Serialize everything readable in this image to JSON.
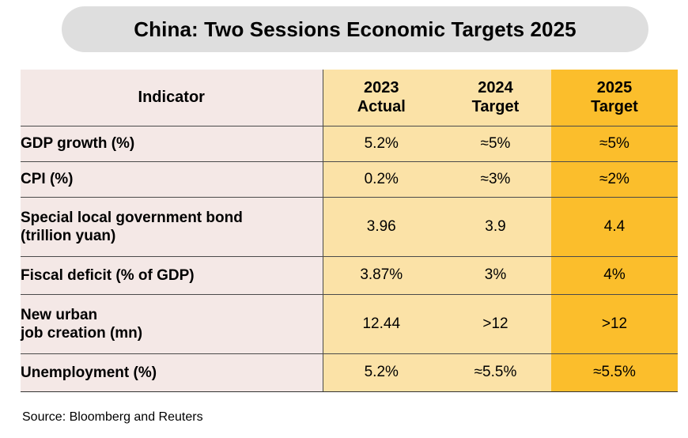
{
  "title": "China: Two Sessions Economic Targets 2025",
  "table": {
    "header": {
      "indicator": "Indicator",
      "col_2023": [
        "2023",
        "Actual"
      ],
      "col_2024": [
        "2024",
        "Target"
      ],
      "col_2025": [
        "2025",
        "Target"
      ]
    },
    "rows": [
      {
        "indicator": [
          "GDP growth (%)"
        ],
        "v2023": "5.2%",
        "v2024": "≈5%",
        "v2025": "≈5%"
      },
      {
        "indicator": [
          "CPI (%)"
        ],
        "v2023": "0.2%",
        "v2024": "≈3%",
        "v2025": "≈2%"
      },
      {
        "indicator": [
          "Special local government bond",
          "(trillion yuan)"
        ],
        "v2023": "3.96",
        "v2024": "3.9",
        "v2025": "4.4"
      },
      {
        "indicator": [
          "Fiscal deficit (% of GDP)"
        ],
        "v2023": "3.87%",
        "v2024": "3%",
        "v2025": "4%"
      },
      {
        "indicator": [
          "New urban",
          "job creation (mn)"
        ],
        "v2023": "12.44",
        "v2024": ">12",
        "v2025": ">12"
      },
      {
        "indicator": [
          "Unemployment (%)"
        ],
        "v2023": "5.2%",
        "v2024": "≈5.5%",
        "v2025": "≈5.5%"
      }
    ]
  },
  "source": "Source: Bloomberg and Reuters",
  "colors": {
    "title_bg": "#dedede",
    "indicator_col": "#f4e8e6",
    "light_yellow": "#fbe2a7",
    "highlight_yellow": "#fbbe2c"
  }
}
